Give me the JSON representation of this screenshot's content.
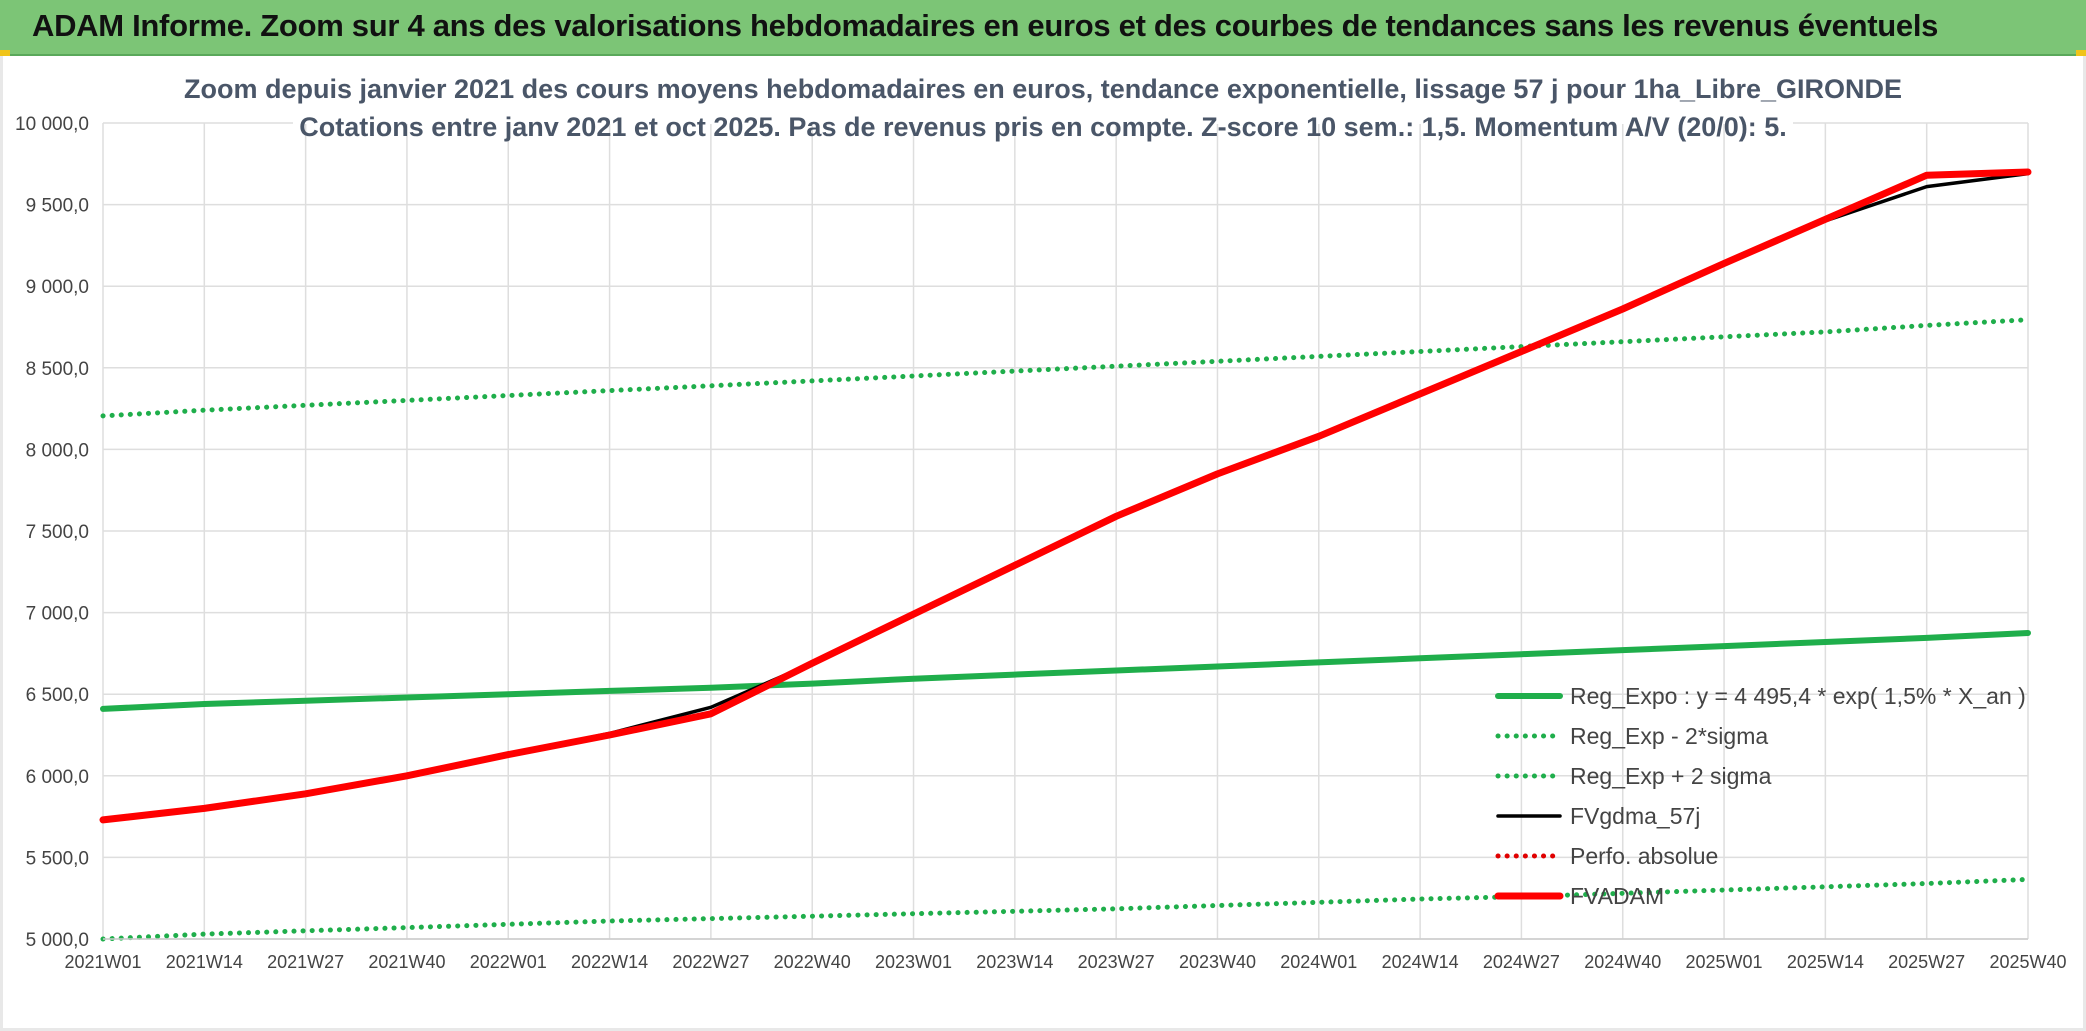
{
  "banner": {
    "title": "ADAM Informe. Zoom sur 4 ans des valorisations hebdomadaires en euros et des courbes de tendances sans les revenus éventuels",
    "background": "#7cc576"
  },
  "chart_data": {
    "type": "line",
    "title": [
      "Zoom depuis janvier 2021 des cours moyens hebdomadaires en euros, tendance exponentielle, lissage 57 j pour 1ha_Libre_GIRONDE",
      "Cotations entre janv 2021 et oct 2025. Pas de revenus pris en compte. Z-score 10 sem.: 1,5. Momentum A/V (20/0): 5."
    ],
    "xlabel": "",
    "ylabel": "",
    "x_ticks": [
      "2021W01",
      "2021W14",
      "2021W27",
      "2021W40",
      "2022W01",
      "2022W14",
      "2022W27",
      "2022W40",
      "2023W01",
      "2023W14",
      "2023W27",
      "2023W40",
      "2024W01",
      "2024W14",
      "2024W27",
      "2024W40",
      "2025W01",
      "2025W14",
      "2025W27",
      "2025W40"
    ],
    "y_ticks": [
      "5 000,0",
      "5 500,0",
      "6 000,0",
      "6 500,0",
      "7 000,0",
      "7 500,0",
      "8 000,0",
      "8 500,0",
      "9 000,0",
      "9 500,0",
      "10 000,0"
    ],
    "ylim": [
      5000,
      10000
    ],
    "grid": true,
    "legend_position": "right",
    "series": [
      {
        "name": "Reg_Expo : y = 4 495,4 * exp( 1,5% *  X_an )",
        "color": "#1fae4b",
        "style": "solid",
        "values": [
          6410,
          6440,
          6460,
          6480,
          6500,
          6520,
          6540,
          6565,
          6595,
          6620,
          6645,
          6670,
          6695,
          6720,
          6745,
          6770,
          6795,
          6820,
          6845,
          6875
        ]
      },
      {
        "name": "Reg_Exp - 2*sigma",
        "color": "#1fae4b",
        "style": "dotted",
        "values": [
          5000,
          5030,
          5050,
          5070,
          5090,
          5110,
          5125,
          5140,
          5155,
          5170,
          5185,
          5205,
          5225,
          5245,
          5260,
          5280,
          5300,
          5320,
          5340,
          5365
        ]
      },
      {
        "name": "Reg_Exp + 2 sigma",
        "color": "#1fae4b",
        "style": "dotted",
        "values": [
          8205,
          8240,
          8270,
          8300,
          8330,
          8360,
          8390,
          8420,
          8450,
          8480,
          8510,
          8540,
          8570,
          8600,
          8630,
          8660,
          8690,
          8720,
          8760,
          8795
        ]
      },
      {
        "name": "FVgdma_57j",
        "color": "#000000",
        "style": "solid",
        "values": [
          5730,
          5800,
          5890,
          6000,
          6130,
          6260,
          6420,
          6690,
          6990,
          7290,
          7590,
          7850,
          8080,
          8340,
          8600,
          8860,
          9140,
          9400,
          9610,
          9690
        ]
      },
      {
        "name": "Perfo. absolue",
        "color": "#e00000",
        "style": "dotted",
        "values": []
      },
      {
        "name": "FVADAM",
        "color": "#ff0000",
        "style": "thick",
        "values": [
          5730,
          5800,
          5890,
          6000,
          6130,
          6250,
          6380,
          6690,
          6990,
          7290,
          7590,
          7850,
          8080,
          8340,
          8600,
          8860,
          9140,
          9410,
          9680,
          9700
        ]
      }
    ]
  }
}
